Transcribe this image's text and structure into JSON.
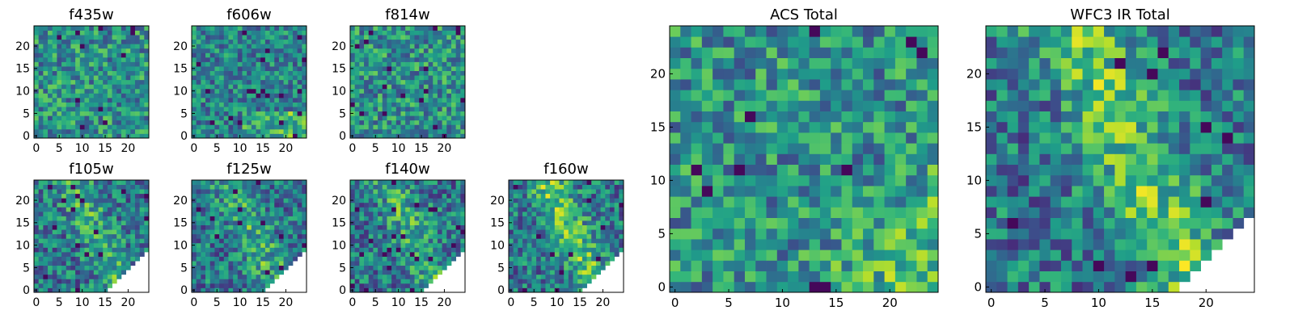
{
  "chart_data": [
    {
      "type": "heatmap",
      "title": "f435w",
      "seed": 11,
      "colormap": "viridis",
      "grid": false,
      "x_range": [
        0,
        24
      ],
      "y_range": [
        0,
        24
      ],
      "xticks": [
        "0",
        "5",
        "10",
        "15",
        "20"
      ],
      "yticks": [
        "0",
        "5",
        "10",
        "15",
        "20"
      ],
      "masked_corner": false,
      "pattern": "noise"
    },
    {
      "type": "heatmap",
      "title": "f606w",
      "seed": 23,
      "colormap": "viridis",
      "grid": false,
      "x_range": [
        0,
        24
      ],
      "y_range": [
        0,
        24
      ],
      "xticks": [
        "0",
        "5",
        "10",
        "15",
        "20"
      ],
      "yticks": [
        "0",
        "5",
        "10",
        "15",
        "20"
      ],
      "masked_corner": false,
      "pattern": "band-low"
    },
    {
      "type": "heatmap",
      "title": "f814w",
      "seed": 37,
      "colormap": "viridis",
      "grid": false,
      "x_range": [
        0,
        24
      ],
      "y_range": [
        0,
        24
      ],
      "xticks": [
        "0",
        "5",
        "10",
        "15",
        "20"
      ],
      "yticks": [
        "0",
        "5",
        "10",
        "15",
        "20"
      ],
      "masked_corner": false,
      "pattern": "noise"
    },
    {
      "type": "heatmap",
      "title": "f105w",
      "seed": 41,
      "colormap": "viridis",
      "grid": false,
      "x_range": [
        0,
        24
      ],
      "y_range": [
        0,
        24
      ],
      "xticks": [
        "0",
        "5",
        "10",
        "15",
        "20"
      ],
      "yticks": [
        "0",
        "5",
        "10",
        "15",
        "20"
      ],
      "masked_corner": true,
      "pattern": "diagonal"
    },
    {
      "type": "heatmap",
      "title": "f125w",
      "seed": 53,
      "colormap": "viridis",
      "grid": false,
      "x_range": [
        0,
        24
      ],
      "y_range": [
        0,
        24
      ],
      "xticks": [
        "0",
        "5",
        "10",
        "15",
        "20"
      ],
      "yticks": [
        "0",
        "5",
        "10",
        "15",
        "20"
      ],
      "masked_corner": true,
      "pattern": "diagonal"
    },
    {
      "type": "heatmap",
      "title": "f140w",
      "seed": 67,
      "colormap": "viridis",
      "grid": false,
      "x_range": [
        0,
        24
      ],
      "y_range": [
        0,
        24
      ],
      "xticks": [
        "0",
        "5",
        "10",
        "15",
        "20"
      ],
      "yticks": [
        "0",
        "5",
        "10",
        "15",
        "20"
      ],
      "masked_corner": true,
      "pattern": "diagonal"
    },
    {
      "type": "heatmap",
      "title": "f160w",
      "seed": 79,
      "colormap": "viridis",
      "grid": false,
      "x_range": [
        0,
        24
      ],
      "y_range": [
        0,
        24
      ],
      "xticks": [
        "0",
        "5",
        "10",
        "15",
        "20"
      ],
      "yticks": [
        "0",
        "5",
        "10",
        "15",
        "20"
      ],
      "masked_corner": true,
      "pattern": "diagonal-strong"
    },
    {
      "type": "heatmap",
      "title": "ACS Total",
      "seed": 97,
      "colormap": "viridis",
      "grid": false,
      "x_range": [
        0,
        24
      ],
      "y_range": [
        0,
        24
      ],
      "xticks": [
        "0",
        "5",
        "10",
        "15",
        "20"
      ],
      "yticks": [
        "0",
        "5",
        "10",
        "15",
        "20"
      ],
      "masked_corner": false,
      "pattern": "corner-high"
    },
    {
      "type": "heatmap",
      "title": "WFC3 IR Total",
      "seed": 113,
      "colormap": "viridis",
      "grid": false,
      "x_range": [
        0,
        24
      ],
      "y_range": [
        0,
        24
      ],
      "xticks": [
        "0",
        "5",
        "10",
        "15",
        "20"
      ],
      "yticks": [
        "0",
        "5",
        "10",
        "15",
        "20"
      ],
      "masked_corner": true,
      "pattern": "diagonal-strong"
    }
  ]
}
